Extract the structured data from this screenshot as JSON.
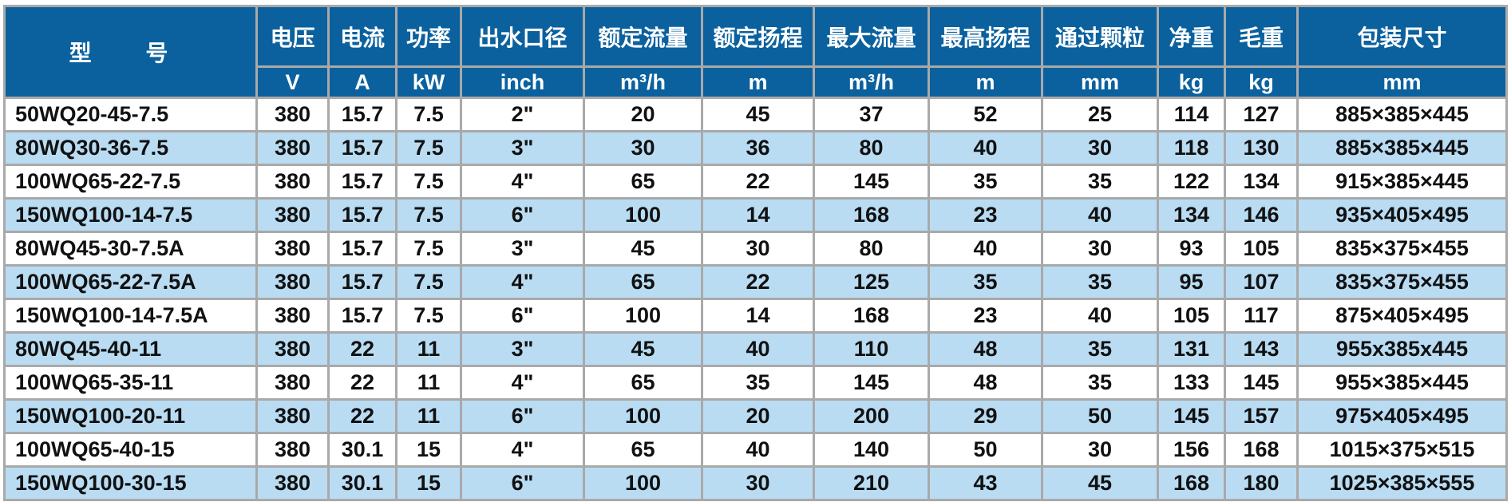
{
  "table": {
    "header_model": "型 号",
    "headers": [
      "电压",
      "电流",
      "功率",
      "出水口径",
      "额定流量",
      "额定扬程",
      "最大流量",
      "最高扬程",
      "通过颗粒",
      "净重",
      "毛重",
      "包装尺寸"
    ],
    "units": [
      "V",
      "A",
      "kW",
      "inch",
      "m³/h",
      "m",
      "m³/h",
      "m",
      "mm",
      "kg",
      "kg",
      "mm"
    ],
    "rows": [
      [
        "50WQ20-45-7.5",
        "380",
        "15.7",
        "7.5",
        "2\"",
        "20",
        "45",
        "37",
        "52",
        "25",
        "114",
        "127",
        "885×385×445"
      ],
      [
        "80WQ30-36-7.5",
        "380",
        "15.7",
        "7.5",
        "3\"",
        "30",
        "36",
        "80",
        "40",
        "30",
        "118",
        "130",
        "885×385×445"
      ],
      [
        "100WQ65-22-7.5",
        "380",
        "15.7",
        "7.5",
        "4\"",
        "65",
        "22",
        "145",
        "35",
        "35",
        "122",
        "134",
        "915×385×445"
      ],
      [
        "150WQ100-14-7.5",
        "380",
        "15.7",
        "7.5",
        "6\"",
        "100",
        "14",
        "168",
        "23",
        "40",
        "134",
        "146",
        "935×405×495"
      ],
      [
        "80WQ45-30-7.5A",
        "380",
        "15.7",
        "7.5",
        "3\"",
        "45",
        "30",
        "80",
        "40",
        "30",
        "93",
        "105",
        "835×375×455"
      ],
      [
        "100WQ65-22-7.5A",
        "380",
        "15.7",
        "7.5",
        "4\"",
        "65",
        "22",
        "125",
        "35",
        "35",
        "95",
        "107",
        "835×375×455"
      ],
      [
        "150WQ100-14-7.5A",
        "380",
        "15.7",
        "7.5",
        "6\"",
        "100",
        "14",
        "168",
        "23",
        "40",
        "105",
        "117",
        "875×405×495"
      ],
      [
        "80WQ45-40-11",
        "380",
        "22",
        "11",
        "3\"",
        "45",
        "40",
        "110",
        "48",
        "35",
        "131",
        "143",
        "955x385x445"
      ],
      [
        "100WQ65-35-11",
        "380",
        "22",
        "11",
        "4\"",
        "65",
        "35",
        "145",
        "48",
        "35",
        "133",
        "145",
        "955×385×445"
      ],
      [
        "150WQ100-20-11",
        "380",
        "22",
        "11",
        "6\"",
        "100",
        "20",
        "200",
        "29",
        "50",
        "145",
        "157",
        "975×405×495"
      ],
      [
        "100WQ65-40-15",
        "380",
        "30.1",
        "15",
        "4\"",
        "65",
        "40",
        "140",
        "50",
        "30",
        "156",
        "168",
        "1015×375×515"
      ],
      [
        "150WQ100-30-15",
        "380",
        "30.1",
        "15",
        "6\"",
        "100",
        "30",
        "210",
        "43",
        "45",
        "168",
        "180",
        "1025×385×555"
      ]
    ],
    "colors": {
      "header_bg": "#0b619e",
      "stripe_bg": "#b9dcf3",
      "border": "#a9a9a9"
    }
  }
}
